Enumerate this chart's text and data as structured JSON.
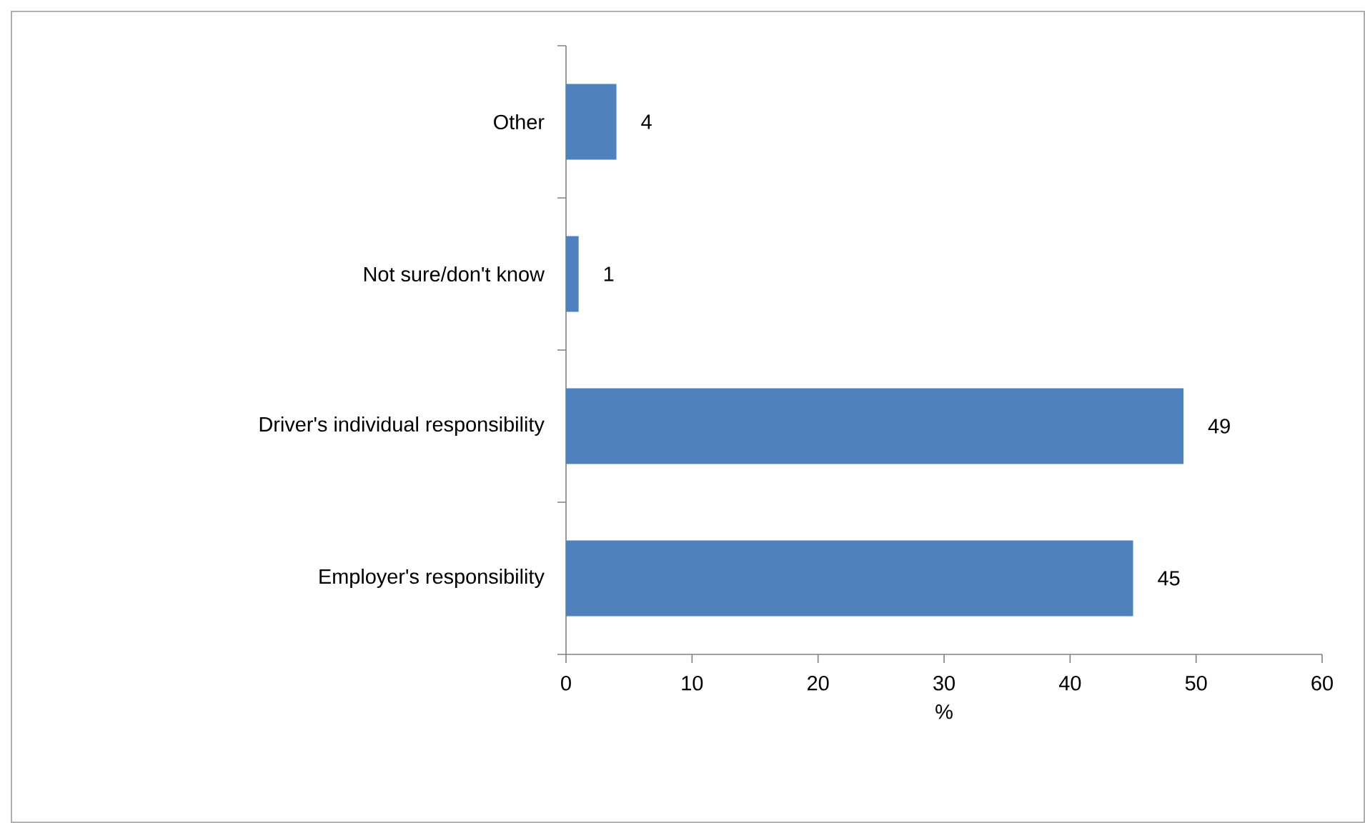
{
  "chart_data": {
    "type": "bar",
    "orientation": "horizontal",
    "categories": [
      "Other",
      "Not sure/don't know",
      "Driver's individual responsibility",
      "Employer's responsibility"
    ],
    "values": [
      4,
      1,
      49,
      45
    ],
    "color": "#4f81bd",
    "data_labels": true,
    "xlabel": "%",
    "xlim": [
      0,
      60
    ],
    "xticks": [
      0,
      10,
      20,
      30,
      40,
      50,
      60
    ],
    "grid": false
  }
}
